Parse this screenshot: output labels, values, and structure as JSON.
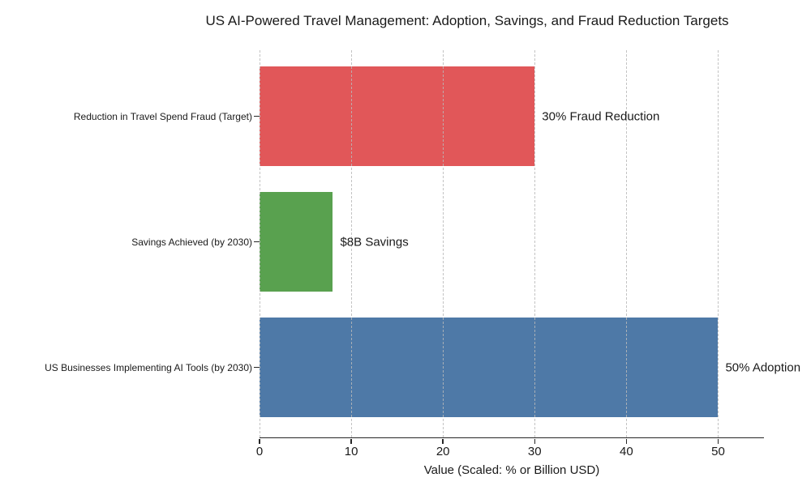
{
  "chart_data": {
    "type": "bar",
    "orientation": "horizontal",
    "title": "US AI-Powered Travel Management: Adoption, Savings, and Fraud Reduction Targets",
    "xlabel": "Value (Scaled: % or Billion USD)",
    "ylabel": "",
    "xlim": [
      0,
      55
    ],
    "xticks": [
      0,
      10,
      20,
      30,
      40,
      50
    ],
    "grid": {
      "axis": "x",
      "style": "dashed",
      "color": "#b9b9b9",
      "on_top_of_bars": true
    },
    "legend": "none",
    "order": "top-to-bottom",
    "categories": [
      "Reduction in Travel Spend Fraud (Target)",
      "Savings Achieved (by 2030)",
      "US Businesses Implementing AI Tools (by 2030)"
    ],
    "values": [
      30,
      8,
      50
    ],
    "bar_colors": [
      "#E15759",
      "#59A14F",
      "#4E79A7"
    ],
    "annotations": [
      "30% Fraud Reduction",
      "$8B Savings",
      "50% Adoption"
    ]
  }
}
